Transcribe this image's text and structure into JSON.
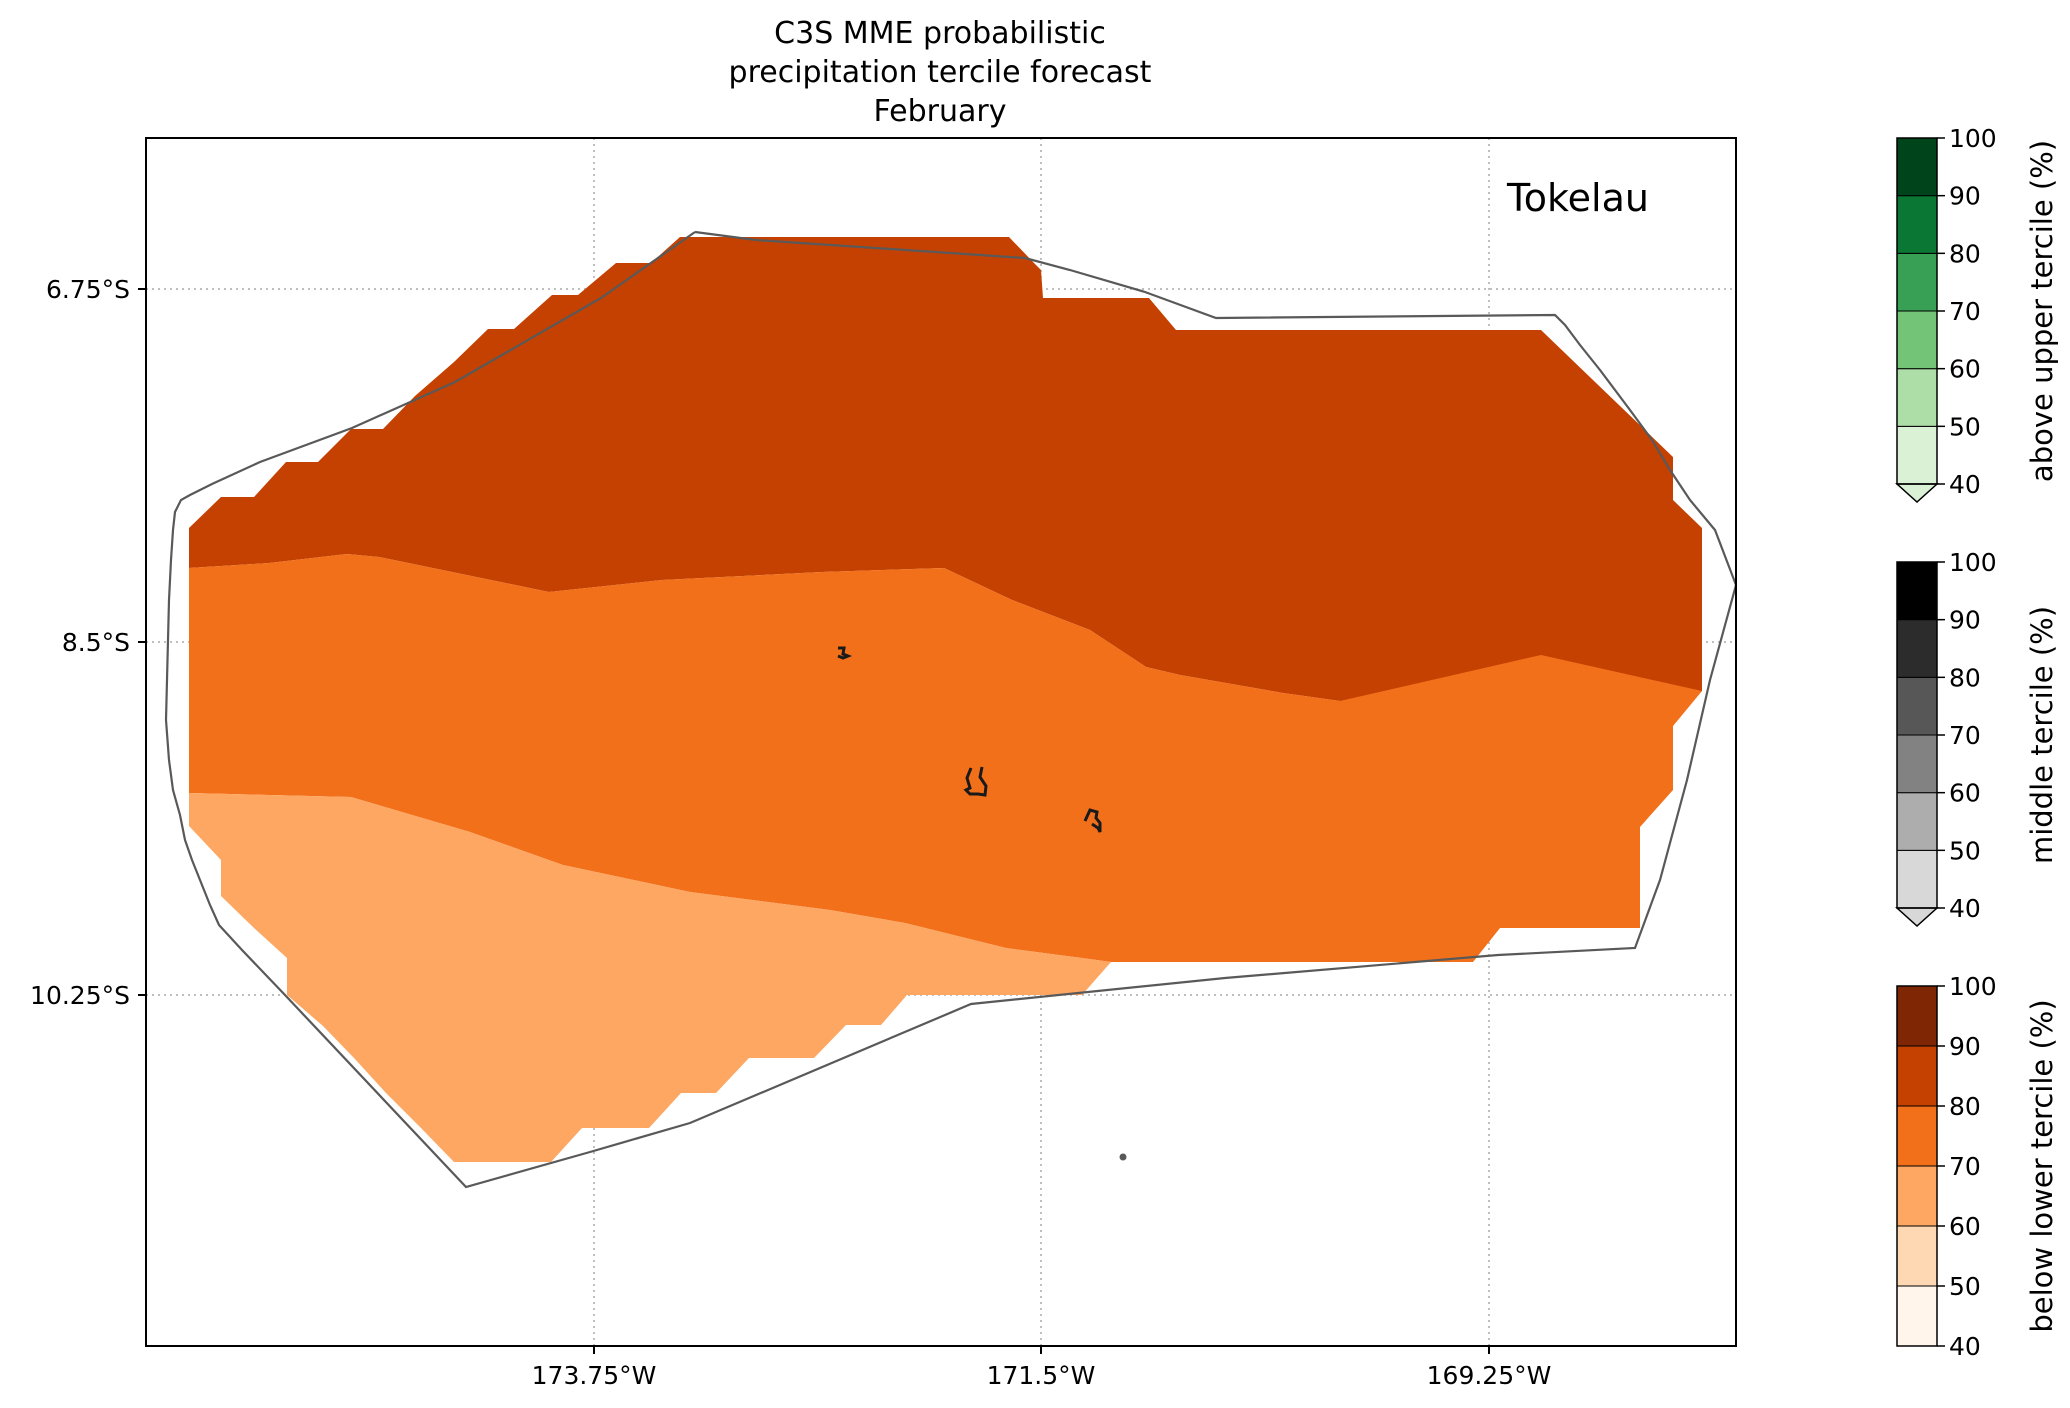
{
  "title": {
    "line1": "C3S MME probabilistic",
    "line2": "precipitation tercile forecast",
    "line3": "February"
  },
  "region_label": "Tokelau",
  "map": {
    "lon_range": [
      -175.0,
      -167.9
    ],
    "lat_range": [
      -12.0,
      -6.0
    ],
    "lon_ticks": [
      {
        "value": -173.75,
        "label": "173.75°W"
      },
      {
        "value": -171.5,
        "label": "171.5°W"
      },
      {
        "value": -169.25,
        "label": "169.25°W"
      }
    ],
    "lat_ticks": [
      {
        "value": -6.75,
        "label": "6.75°S"
      },
      {
        "value": -8.5,
        "label": "8.5°S"
      },
      {
        "value": -10.25,
        "label": "10.25°S"
      }
    ],
    "gridlines": "dotted"
  },
  "colorbars": [
    {
      "name": "above-upper-tercile",
      "label": "above upper tercile (%)",
      "ticks": [
        "40",
        "50",
        "60",
        "70",
        "80",
        "90",
        "100"
      ],
      "colors": [
        "#dbf1d5",
        "#aedea7",
        "#73c476",
        "#37a055",
        "#0b7734",
        "#00441b"
      ],
      "extend": "min"
    },
    {
      "name": "middle-tercile",
      "label": "middle tercile (%)",
      "ticks": [
        "40",
        "50",
        "60",
        "70",
        "80",
        "90",
        "100"
      ],
      "colors": [
        "#d8d8d8",
        "#adadad",
        "#828282",
        "#575757",
        "#2c2c2c",
        "#000000"
      ],
      "extend": "min"
    },
    {
      "name": "below-lower-tercile",
      "label": "below lower tercile (%)",
      "ticks": [
        "40",
        "50",
        "60",
        "70",
        "80",
        "90",
        "100"
      ],
      "colors": [
        "#fff5eb",
        "#fdd8b3",
        "#fda762",
        "#f3701b",
        "#c54102",
        "#7f2704"
      ],
      "extend": "none"
    }
  ],
  "forecast_categories": [
    {
      "category": "below lower tercile",
      "range": "80-90",
      "color": "#c54102"
    },
    {
      "category": "below lower tercile",
      "range": "70-80",
      "color": "#f3701b"
    },
    {
      "category": "below lower tercile",
      "range": "60-70",
      "color": "#fda762"
    }
  ]
}
